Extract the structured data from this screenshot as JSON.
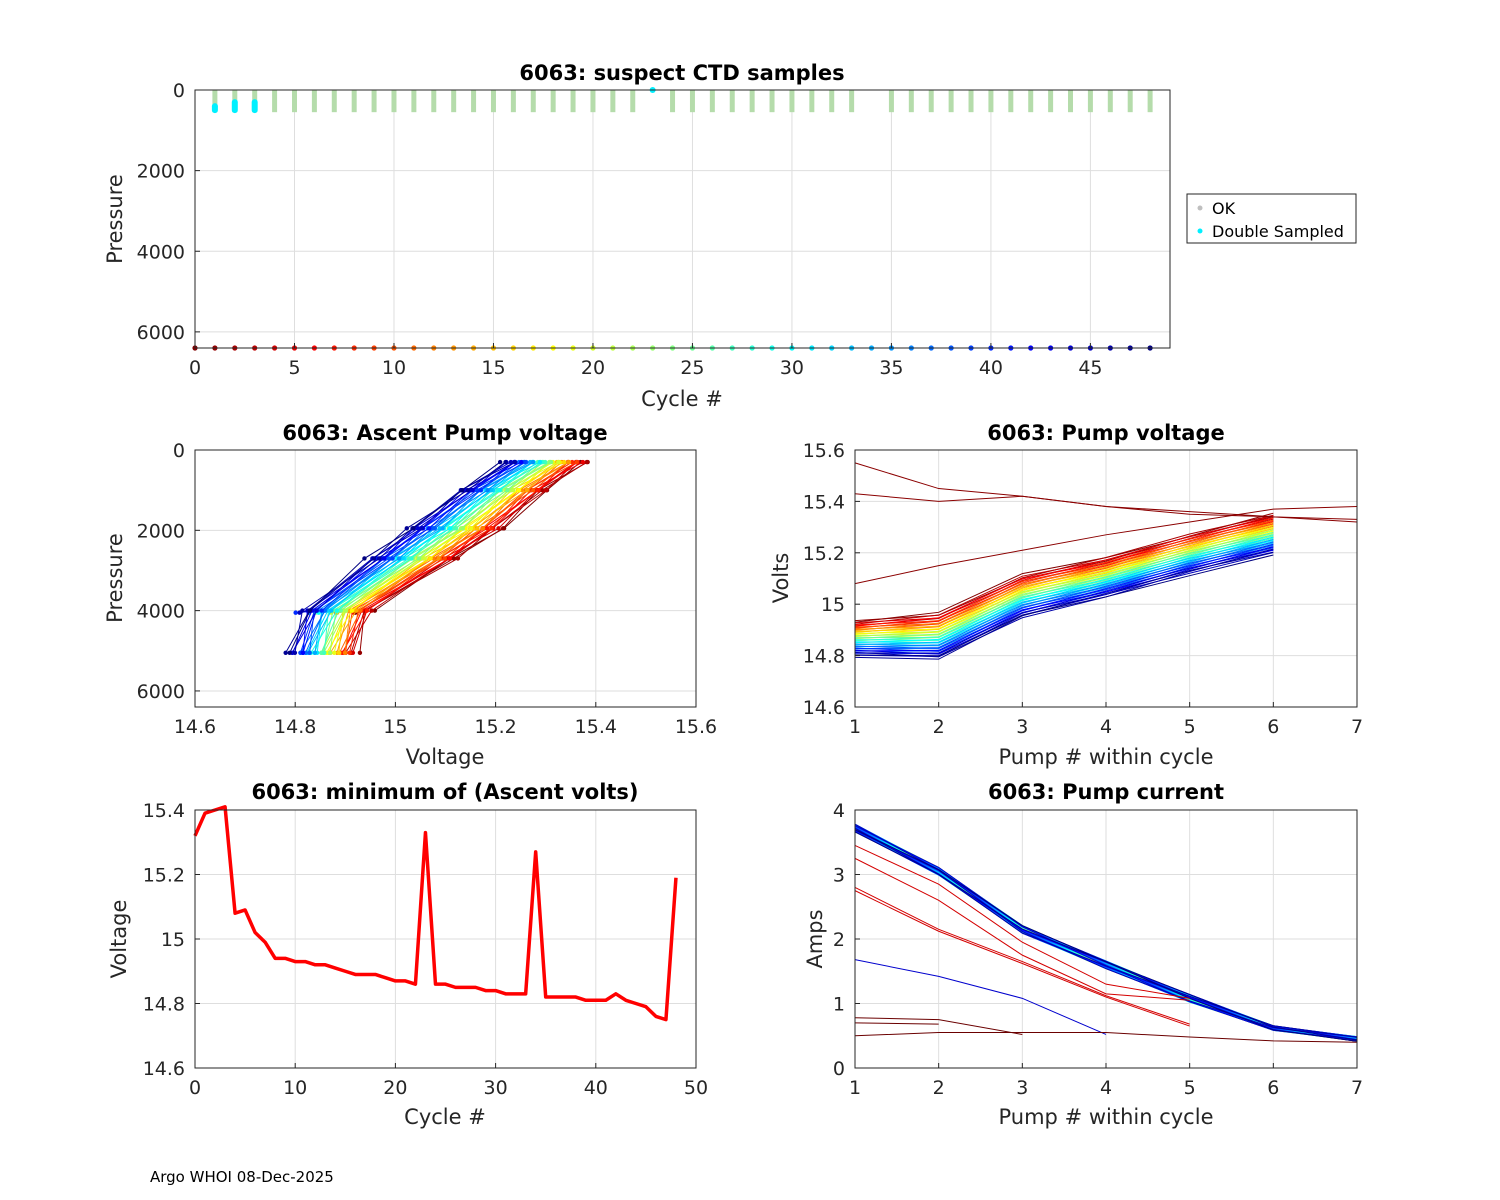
{
  "footer": "Argo WHOI 08-Dec-2025",
  "chart_data": [
    {
      "id": "suspect",
      "type": "scatter",
      "title": "6063: suspect CTD samples",
      "xlabel": "Cycle #",
      "ylabel": "Pressure",
      "xlim": [
        0,
        49
      ],
      "ylim": [
        6400,
        0
      ],
      "xticks": [
        0,
        5,
        10,
        15,
        20,
        25,
        30,
        35,
        40,
        45
      ],
      "yticks": [
        0,
        2000,
        4000,
        6000
      ],
      "xtick_labels": [
        "0",
        "5",
        "10",
        "15",
        "20",
        "25",
        "30",
        "35",
        "40",
        "45"
      ],
      "ytick_labels": [
        "0",
        "2000",
        "4000",
        "6000"
      ],
      "ok_cycles": [
        1,
        2,
        3,
        4,
        5,
        6,
        7,
        8,
        9,
        10,
        11,
        12,
        13,
        14,
        15,
        16,
        17,
        18,
        19,
        20,
        21,
        22,
        24,
        25,
        26,
        27,
        28,
        29,
        30,
        31,
        32,
        33,
        35,
        36,
        37,
        38,
        39,
        40,
        41,
        42,
        43,
        44,
        45,
        46,
        47,
        48
      ],
      "ok_pressure_range": [
        0,
        550
      ],
      "double_sampled": [
        {
          "cycle": 1,
          "p": [
            400,
            500
          ]
        },
        {
          "cycle": 2,
          "p": [
            300,
            500
          ]
        },
        {
          "cycle": 3,
          "p": [
            300,
            500
          ]
        },
        {
          "cycle": 23,
          "p": [
            0,
            0
          ]
        }
      ],
      "cycle_markers_pressure": 6400,
      "cycle_marker_cycles": [
        0,
        1,
        2,
        3,
        4,
        5,
        6,
        7,
        8,
        9,
        10,
        11,
        12,
        13,
        14,
        15,
        16,
        17,
        18,
        19,
        20,
        21,
        22,
        23,
        24,
        25,
        26,
        27,
        28,
        29,
        30,
        31,
        32,
        33,
        34,
        35,
        36,
        37,
        38,
        39,
        40,
        41,
        42,
        43,
        44,
        45,
        46,
        47,
        48
      ],
      "legend": [
        {
          "label": "OK",
          "color": "#bfbfbf"
        },
        {
          "label": "Double Sampled",
          "color": "#00f0ff"
        }
      ]
    },
    {
      "id": "ascent",
      "type": "line",
      "title": "6063: Ascent Pump voltage",
      "xlabel": "Voltage",
      "ylabel": "Pressure",
      "xlim": [
        14.6,
        15.6
      ],
      "ylim": [
        6400,
        0
      ],
      "xticks": [
        14.6,
        14.8,
        15,
        15.2,
        15.4,
        15.6
      ],
      "xtick_labels": [
        "14.6",
        "14.8",
        "15",
        "15.2",
        "15.4",
        "15.6"
      ],
      "yticks": [
        0,
        2000,
        4000,
        6000
      ],
      "ytick_labels": [
        "0",
        "2000",
        "4000",
        "6000"
      ],
      "note": "one profile per cycle, colored by cycle (jet colormap)",
      "profile_pressures": [
        5050,
        4000,
        2700,
        1950,
        1000,
        300
      ],
      "first_profile_volts": [
        14.92,
        14.95,
        15.12,
        15.21,
        15.3,
        15.38
      ],
      "last_profile_volts": [
        14.79,
        14.82,
        14.95,
        15.03,
        15.13,
        15.22
      ]
    },
    {
      "id": "pumpv",
      "type": "line",
      "title": "6063: Pump voltage",
      "xlabel": "Pump # within cycle",
      "ylabel": "Volts",
      "xlim": [
        1,
        7
      ],
      "ylim": [
        14.6,
        15.6
      ],
      "xticks": [
        1,
        2,
        3,
        4,
        5,
        6,
        7
      ],
      "xtick_labels": [
        "1",
        "2",
        "3",
        "4",
        "5",
        "6",
        "7"
      ],
      "yticks": [
        14.6,
        14.8,
        15,
        15.2,
        15.4,
        15.6
      ],
      "ytick_labels": [
        "14.6",
        "14.8",
        "15",
        "15.2",
        "15.4",
        "15.6"
      ],
      "first_cycle_volts": [
        14.93,
        14.96,
        15.11,
        15.18,
        15.27,
        15.35
      ],
      "last_cycle_volts": [
        14.8,
        14.79,
        14.95,
        15.03,
        15.12,
        15.2
      ]
    },
    {
      "id": "minv",
      "type": "line",
      "title": "6063: minimum of (Ascent volts)",
      "xlabel": "Cycle #",
      "ylabel": "Voltage",
      "xlim": [
        0,
        50
      ],
      "ylim": [
        14.6,
        15.4
      ],
      "xticks": [
        0,
        10,
        20,
        30,
        40,
        50
      ],
      "xtick_labels": [
        "0",
        "10",
        "20",
        "30",
        "40",
        "50"
      ],
      "yticks": [
        14.6,
        14.8,
        15,
        15.2,
        15.4
      ],
      "ytick_labels": [
        "14.6",
        "14.8",
        "15",
        "15.2",
        "15.4"
      ],
      "x": [
        0,
        1,
        2,
        3,
        4,
        5,
        6,
        7,
        8,
        9,
        10,
        11,
        12,
        13,
        14,
        15,
        16,
        17,
        18,
        19,
        20,
        21,
        22,
        23,
        24,
        25,
        26,
        27,
        28,
        29,
        30,
        31,
        32,
        33,
        34,
        35,
        36,
        37,
        38,
        39,
        40,
        41,
        42,
        43,
        44,
        45,
        46,
        47,
        48
      ],
      "values": [
        15.32,
        15.39,
        15.4,
        15.41,
        15.08,
        15.09,
        15.02,
        14.99,
        14.94,
        14.94,
        14.93,
        14.93,
        14.92,
        14.92,
        14.91,
        14.9,
        14.89,
        14.89,
        14.89,
        14.88,
        14.87,
        14.87,
        14.86,
        15.33,
        14.86,
        14.86,
        14.85,
        14.85,
        14.85,
        14.84,
        14.84,
        14.83,
        14.83,
        14.83,
        15.27,
        14.82,
        14.82,
        14.82,
        14.82,
        14.81,
        14.81,
        14.81,
        14.83,
        14.81,
        14.8,
        14.79,
        14.76,
        14.75,
        15.19
      ],
      "color": "#ff0000"
    },
    {
      "id": "pumpc",
      "type": "line",
      "title": "6063: Pump current",
      "xlabel": "Pump # within cycle",
      "ylabel": "Amps",
      "xlim": [
        1,
        7
      ],
      "ylim": [
        0,
        4
      ],
      "xticks": [
        1,
        2,
        3,
        4,
        5,
        6,
        7
      ],
      "xtick_labels": [
        "1",
        "2",
        "3",
        "4",
        "5",
        "6",
        "7"
      ],
      "yticks": [
        0,
        1,
        2,
        3,
        4
      ],
      "ytick_labels": [
        "0",
        "1",
        "2",
        "3",
        "4"
      ],
      "main_curve": [
        3.72,
        3.05,
        2.15,
        1.6,
        1.08,
        0.62,
        0.45
      ]
    }
  ]
}
